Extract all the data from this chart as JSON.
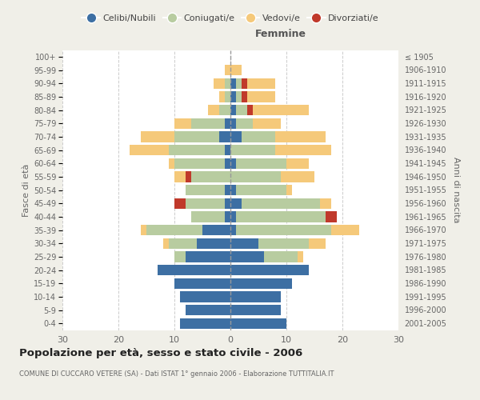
{
  "age_groups": [
    "0-4",
    "5-9",
    "10-14",
    "15-19",
    "20-24",
    "25-29",
    "30-34",
    "35-39",
    "40-44",
    "45-49",
    "50-54",
    "55-59",
    "60-64",
    "65-69",
    "70-74",
    "75-79",
    "80-84",
    "85-89",
    "90-94",
    "95-99",
    "100+"
  ],
  "birth_years": [
    "2001-2005",
    "1996-2000",
    "1991-1995",
    "1986-1990",
    "1981-1985",
    "1976-1980",
    "1971-1975",
    "1966-1970",
    "1961-1965",
    "1956-1960",
    "1951-1955",
    "1946-1950",
    "1941-1945",
    "1936-1940",
    "1931-1935",
    "1926-1930",
    "1921-1925",
    "1916-1920",
    "1911-1915",
    "1906-1910",
    "≤ 1905"
  ],
  "males_celibi": [
    9,
    8,
    9,
    10,
    13,
    8,
    6,
    5,
    1,
    1,
    1,
    0,
    1,
    1,
    2,
    1,
    0,
    0,
    0,
    0,
    0
  ],
  "males_coniugati": [
    0,
    0,
    0,
    0,
    0,
    2,
    5,
    10,
    6,
    7,
    7,
    7,
    9,
    10,
    8,
    6,
    2,
    1,
    1,
    0,
    0
  ],
  "males_vedovi": [
    0,
    0,
    0,
    0,
    0,
    0,
    1,
    1,
    0,
    0,
    0,
    2,
    1,
    7,
    6,
    3,
    2,
    1,
    2,
    1,
    0
  ],
  "males_divorziati": [
    0,
    0,
    0,
    0,
    0,
    0,
    0,
    0,
    0,
    2,
    0,
    1,
    0,
    0,
    0,
    0,
    0,
    0,
    0,
    0,
    0
  ],
  "females_nubili": [
    10,
    9,
    9,
    11,
    14,
    6,
    5,
    1,
    1,
    2,
    1,
    0,
    1,
    0,
    2,
    1,
    1,
    1,
    1,
    0,
    0
  ],
  "females_coniugate": [
    0,
    0,
    0,
    0,
    0,
    6,
    9,
    17,
    16,
    14,
    9,
    9,
    9,
    8,
    6,
    3,
    2,
    1,
    1,
    0,
    0
  ],
  "females_vedove": [
    0,
    0,
    0,
    0,
    0,
    1,
    3,
    5,
    0,
    2,
    1,
    6,
    4,
    10,
    9,
    5,
    10,
    5,
    5,
    2,
    0
  ],
  "females_divorziate": [
    0,
    0,
    0,
    0,
    0,
    0,
    0,
    0,
    2,
    0,
    0,
    0,
    0,
    0,
    0,
    0,
    1,
    1,
    1,
    0,
    0
  ],
  "color_celibi": "#3d6fa3",
  "color_coniugati": "#b8cca0",
  "color_vedovi": "#f5c97a",
  "color_divorziati": "#c0392b",
  "bg_color": "#f0efe8",
  "plot_bg_color": "#ffffff",
  "xlim": 30,
  "title": "Popolazione per età, sesso e stato civile - 2006",
  "subtitle": "COMUNE DI CUCCARO VETERE (SA) - Dati ISTAT 1° gennaio 2006 - Elaborazione TUTTITALIA.IT",
  "label_femmine": "Femmine",
  "ylabel_left": "Fasce di età",
  "ylabel_right": "Anni di nascita",
  "legend_labels": [
    "Celibi/Nubili",
    "Coniugati/e",
    "Vedovi/e",
    "Divorziati/e"
  ]
}
